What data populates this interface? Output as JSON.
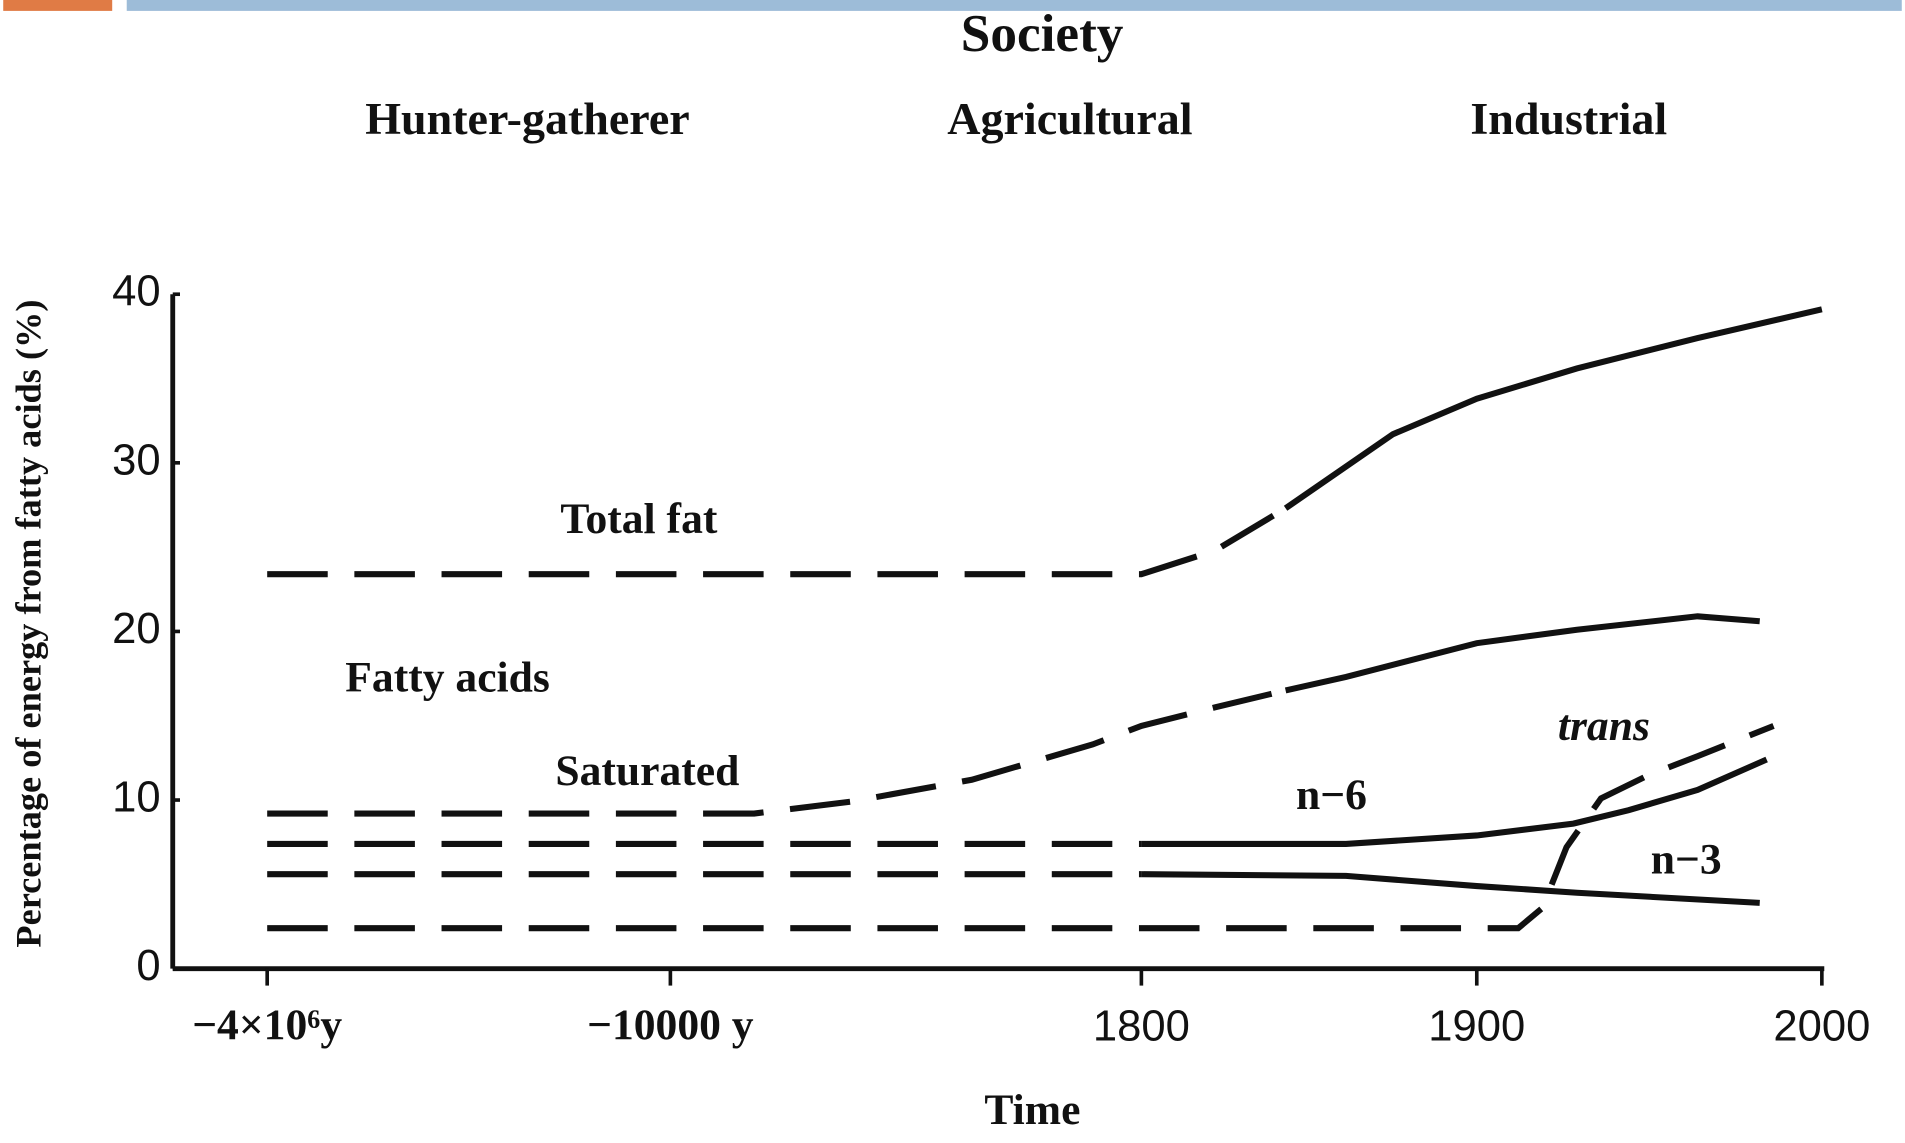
{
  "chart_data": {
    "type": "line",
    "title": "Society",
    "society_labels": [
      "Hunter-gatherer",
      "Agricultural",
      "Industrial"
    ],
    "annotation": "Fatty acids",
    "xlabel": "Time",
    "ylabel": "Percentage of energy from fatty acids (%)",
    "xlim": [
      -4000000,
      2000
    ],
    "ylim": [
      0,
      40
    ],
    "xticks": [
      {
        "value": -4000000,
        "label": "−4×10⁶y"
      },
      {
        "value": -10000,
        "label": "−10000 y"
      },
      1800,
      1900,
      2000
    ],
    "yticks": [
      0,
      10,
      20,
      30,
      40
    ],
    "x_scale": "piecewise",
    "grid": false,
    "series": [
      {
        "name": "Total fat",
        "color": "#111111",
        "solid_from": 1845,
        "x": [
          -4000000,
          -10000,
          1800,
          1822,
          1843,
          1875,
          1900,
          1929,
          1964,
          2000
        ],
        "values": [
          23.4,
          23.4,
          23.4,
          24.8,
          27.3,
          31.7,
          33.8,
          35.6,
          37.4,
          39.1
        ]
      },
      {
        "name": "Saturated",
        "color": "#111111",
        "solid_from": 1861,
        "x": [
          -4000000,
          -7900,
          -5480,
          -2450,
          580,
          1800,
          1822,
          1843,
          1861,
          1900,
          1929,
          1964,
          1982
        ],
        "values": [
          9.2,
          9.2,
          9.9,
          11.2,
          13.3,
          14.4,
          15.5,
          16.5,
          17.3,
          19.3,
          20.1,
          20.9,
          20.6
        ]
      },
      {
        "name": "n−6",
        "color": "#111111",
        "solid_from": 1861,
        "x": [
          -4000000,
          -10000,
          1800,
          1861,
          1900,
          1928,
          1944,
          1964,
          1984
        ],
        "values": [
          7.4,
          7.4,
          7.4,
          7.4,
          7.9,
          8.6,
          9.4,
          10.6,
          12.4
        ]
      },
      {
        "name": "n−3",
        "color": "#111111",
        "solid_from": 1861,
        "x": [
          -4000000,
          -10000,
          1800,
          1861,
          1900,
          1929,
          1982
        ],
        "values": [
          5.6,
          5.6,
          5.6,
          5.5,
          4.9,
          4.5,
          3.9
        ]
      },
      {
        "name": "trans",
        "color": "#111111",
        "x": [
          -4000000,
          -10000,
          1800,
          1912,
          1919,
          1926,
          1936,
          1950,
          1964,
          1986
        ],
        "values": [
          2.4,
          2.4,
          2.4,
          2.4,
          3.6,
          7.2,
          10.1,
          11.5,
          12.6,
          14.4
        ]
      }
    ]
  }
}
